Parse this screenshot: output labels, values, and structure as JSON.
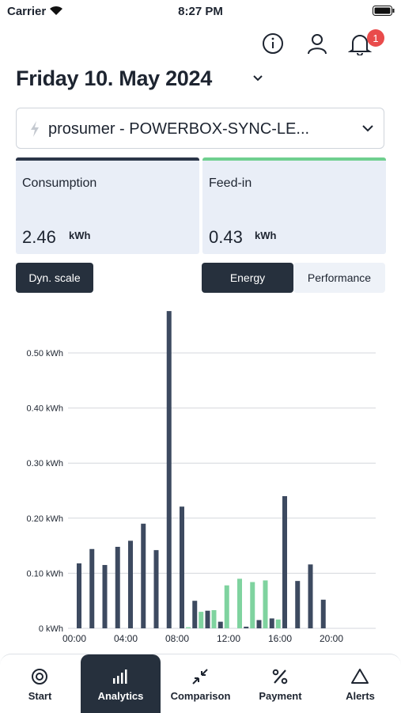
{
  "status_bar": {
    "carrier": "Carrier",
    "time": "8:27 PM"
  },
  "notification_count": 1,
  "date_title": "Friday 10. May 2024",
  "device_select": "prosumer - POWERBOX-SYNC-LE...",
  "cards": [
    {
      "label": "Consumption",
      "value": 2.46,
      "unit": "kWh"
    },
    {
      "label": "Feed-in",
      "value": 0.43,
      "unit": "kWh"
    }
  ],
  "buttons": {
    "scale": "Dyn. scale",
    "modes": [
      "Energy",
      "Performance"
    ]
  },
  "chart_data": {
    "type": "bar",
    "categories": [
      "00:00",
      null,
      null,
      null,
      "04:00",
      null,
      null,
      null,
      "08:00",
      null,
      null,
      null,
      "12:00",
      null,
      null,
      null,
      "16:00",
      null,
      null,
      null,
      "20:00",
      null,
      null,
      null
    ],
    "series": [
      {
        "color": "#3d4a60",
        "values": [
          0.118,
          0.144,
          0.115,
          0.148,
          0.159,
          0.19,
          0.142,
          0.576,
          0.221,
          0.05,
          0.032,
          0.012,
          0,
          0.003,
          0.015,
          0.018,
          0.24,
          0.086,
          0.116,
          0.052,
          0,
          0,
          0,
          0
        ]
      },
      {
        "color": "#7fd39f",
        "values": [
          0,
          0,
          0,
          0,
          0,
          0,
          0,
          0,
          0.002,
          0.03,
          0.033,
          0.078,
          0.09,
          0.084,
          0.087,
          0.016,
          0,
          0,
          0,
          0,
          0,
          0,
          0,
          0
        ]
      }
    ],
    "ylim": [
      0,
      0.6
    ],
    "yticks": [
      {
        "value": 0,
        "label": "0 kWh"
      },
      {
        "value": 0.1,
        "label": "0.10 kWh"
      },
      {
        "value": 0.2,
        "label": "0.20 kWh"
      },
      {
        "value": 0.3,
        "label": "0.30 kWh"
      },
      {
        "value": 0.4,
        "label": "0.40 kWh"
      },
      {
        "value": 0.5,
        "label": "0.50 kWh"
      }
    ],
    "grid": true
  },
  "tabs": [
    "Start",
    "Analytics",
    "Comparison",
    "Payment",
    "Alerts"
  ]
}
